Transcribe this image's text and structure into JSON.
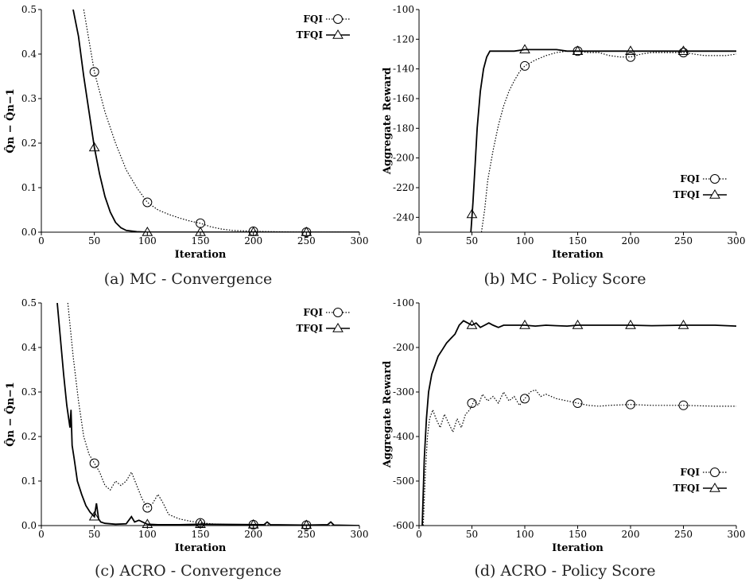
{
  "figure": {
    "panels": [
      {
        "id": "a",
        "caption": "(a) MC - Convergence"
      },
      {
        "id": "b",
        "caption": "(b) MC - Policy Score"
      },
      {
        "id": "c",
        "caption": "(c) ACRO - Convergence"
      },
      {
        "id": "d",
        "caption": "(d) ACRO - Policy Score"
      }
    ]
  },
  "chart_data": [
    {
      "type": "line",
      "xlabel": "Iteration",
      "ylabel": "Q̂n − Q̂n−1",
      "xlim": [
        0,
        300
      ],
      "ylim": [
        0,
        0.5
      ],
      "xticks": [
        0,
        50,
        100,
        150,
        200,
        250,
        300
      ],
      "yticks": [
        0.0,
        0.1,
        0.2,
        0.3,
        0.4,
        0.5
      ],
      "ytick_labels": [
        "0.0",
        "0.1",
        "0.2",
        "0.3",
        "0.4",
        "0.5"
      ],
      "legend_position": "top-right",
      "series": [
        {
          "name": "FQI",
          "style": "dotted",
          "marker": "circle",
          "x": [
            40,
            50,
            60,
            70,
            80,
            90,
            100,
            110,
            120,
            130,
            140,
            150,
            160,
            170,
            180,
            190,
            200,
            220,
            250,
            300
          ],
          "y": [
            0.5,
            0.36,
            0.27,
            0.2,
            0.14,
            0.1,
            0.067,
            0.05,
            0.04,
            0.032,
            0.025,
            0.02,
            0.012,
            0.007,
            0.004,
            0.003,
            0.002,
            0.001,
            0.0,
            0.0
          ],
          "marker_x": [
            50,
            100,
            150,
            200,
            250
          ],
          "marker_y": [
            0.36,
            0.067,
            0.02,
            0.002,
            0.0
          ]
        },
        {
          "name": "TFQI",
          "style": "solid",
          "marker": "triangle",
          "x": [
            30,
            35,
            40,
            45,
            50,
            55,
            60,
            65,
            70,
            75,
            80,
            90,
            100,
            120,
            300
          ],
          "y": [
            0.5,
            0.44,
            0.35,
            0.27,
            0.19,
            0.13,
            0.08,
            0.045,
            0.022,
            0.01,
            0.004,
            0.001,
            0.0,
            0.0,
            0.0
          ],
          "marker_x": [
            50,
            100,
            150,
            200,
            250
          ],
          "marker_y": [
            0.19,
            0.0,
            0.0,
            0.0,
            0.0
          ]
        }
      ]
    },
    {
      "type": "line",
      "xlabel": "Iteration",
      "ylabel": "Aggregate Reward",
      "xlim": [
        0,
        300
      ],
      "ylim": [
        -250,
        -100
      ],
      "xticks": [
        0,
        50,
        100,
        150,
        200,
        250,
        300
      ],
      "yticks": [
        -240,
        -220,
        -200,
        -180,
        -160,
        -140,
        -120,
        -100
      ],
      "ytick_labels": [
        "-240",
        "-220",
        "-200",
        "-180",
        "-160",
        "-140",
        "-120",
        "-100"
      ],
      "legend_position": "bottom-right",
      "series": [
        {
          "name": "FQI",
          "style": "dotted",
          "marker": "circle",
          "x": [
            59,
            62,
            65,
            70,
            75,
            80,
            85,
            90,
            95,
            100,
            110,
            120,
            130,
            140,
            150,
            160,
            170,
            180,
            190,
            200,
            210,
            220,
            230,
            240,
            250,
            260,
            270,
            280,
            290,
            300
          ],
          "y": [
            -250,
            -235,
            -215,
            -195,
            -178,
            -165,
            -155,
            -148,
            -142,
            -138,
            -134,
            -131,
            -129,
            -128,
            -128,
            -129,
            -129,
            -131,
            -132,
            -132,
            -130,
            -129,
            -129,
            -129,
            -129,
            -130,
            -131,
            -131,
            -131,
            -130
          ],
          "marker_x": [
            100,
            150,
            200,
            250
          ],
          "marker_y": [
            -138,
            -128,
            -132,
            -129
          ]
        },
        {
          "name": "TFQI",
          "style": "solid",
          "marker": "triangle",
          "x": [
            49,
            51,
            53,
            55,
            58,
            61,
            64,
            67,
            70,
            80,
            90,
            100,
            110,
            120,
            130,
            140,
            150,
            200,
            250,
            300
          ],
          "y": [
            -250,
            -230,
            -205,
            -180,
            -155,
            -140,
            -132,
            -128,
            -128,
            -128,
            -128,
            -127,
            -127,
            -127,
            -127,
            -128,
            -128,
            -128,
            -128,
            -128
          ],
          "marker_x": [
            50,
            100,
            150,
            200,
            250
          ],
          "marker_y": [
            -238,
            -127,
            -128,
            -128,
            -128
          ]
        }
      ]
    },
    {
      "type": "line",
      "xlabel": "Iteration",
      "ylabel": "Q̂n − Q̂n−1",
      "xlim": [
        0,
        300
      ],
      "ylim": [
        0,
        0.5
      ],
      "xticks": [
        0,
        50,
        100,
        150,
        200,
        250,
        300
      ],
      "yticks": [
        0.0,
        0.1,
        0.2,
        0.3,
        0.4,
        0.5
      ],
      "ytick_labels": [
        "0.0",
        "0.1",
        "0.2",
        "0.3",
        "0.4",
        "0.5"
      ],
      "legend_position": "top-right",
      "series": [
        {
          "name": "FQI",
          "style": "dotted",
          "marker": "circle",
          "x": [
            25,
            30,
            35,
            40,
            45,
            50,
            55,
            60,
            65,
            70,
            75,
            80,
            85,
            90,
            95,
            100,
            105,
            110,
            115,
            120,
            125,
            130,
            140,
            150,
            160,
            180,
            200,
            250,
            300
          ],
          "y": [
            0.5,
            0.38,
            0.28,
            0.2,
            0.16,
            0.14,
            0.12,
            0.09,
            0.08,
            0.1,
            0.09,
            0.1,
            0.12,
            0.09,
            0.06,
            0.04,
            0.05,
            0.07,
            0.05,
            0.025,
            0.02,
            0.015,
            0.01,
            0.006,
            0.004,
            0.002,
            0.002,
            0.001,
            0.0
          ],
          "marker_x": [
            50,
            100,
            150,
            200,
            250
          ],
          "marker_y": [
            0.14,
            0.04,
            0.006,
            0.002,
            0.001
          ]
        },
        {
          "name": "TFQI",
          "style": "solid",
          "marker": "triangle",
          "x": [
            15,
            18,
            21,
            24,
            27,
            28,
            29,
            31,
            34,
            38,
            42,
            46,
            50,
            52,
            54,
            56,
            60,
            70,
            80,
            85,
            88,
            92,
            100,
            110,
            130,
            150,
            210,
            213,
            216,
            250,
            270,
            273,
            276,
            300
          ],
          "y": [
            0.5,
            0.42,
            0.34,
            0.27,
            0.22,
            0.26,
            0.18,
            0.15,
            0.1,
            0.07,
            0.045,
            0.03,
            0.02,
            0.05,
            0.015,
            0.008,
            0.005,
            0.003,
            0.004,
            0.02,
            0.008,
            0.012,
            0.003,
            0.002,
            0.002,
            0.003,
            0.002,
            0.008,
            0.002,
            0.001,
            0.002,
            0.008,
            0.001,
            0.0
          ],
          "marker_x": [
            50,
            100,
            150,
            200,
            250
          ],
          "marker_y": [
            0.02,
            0.003,
            0.003,
            0.002,
            0.001
          ]
        }
      ]
    },
    {
      "type": "line",
      "xlabel": "Iteration",
      "ylabel": "Aggregate Reward",
      "xlim": [
        0,
        300
      ],
      "ylim": [
        -600,
        -100
      ],
      "xticks": [
        0,
        50,
        100,
        150,
        200,
        250,
        300
      ],
      "yticks": [
        -600,
        -500,
        -400,
        -300,
        -200,
        -100
      ],
      "ytick_labels": [
        "-600",
        "-500",
        "-400",
        "-300",
        "-200",
        "-100"
      ],
      "legend_position": "bottom-right",
      "series": [
        {
          "name": "FQI",
          "style": "dotted",
          "marker": "circle",
          "x": [
            4,
            6,
            8,
            10,
            13,
            16,
            20,
            24,
            28,
            32,
            36,
            40,
            44,
            48,
            52,
            56,
            60,
            65,
            70,
            75,
            80,
            85,
            90,
            95,
            100,
            105,
            110,
            115,
            120,
            130,
            140,
            150,
            160,
            170,
            180,
            200,
            220,
            250,
            280,
            300
          ],
          "y": [
            -600,
            -480,
            -400,
            -360,
            -340,
            -360,
            -380,
            -350,
            -370,
            -390,
            -360,
            -380,
            -350,
            -340,
            -320,
            -330,
            -305,
            -320,
            -310,
            -325,
            -300,
            -320,
            -310,
            -330,
            -315,
            -300,
            -295,
            -310,
            -305,
            -315,
            -320,
            -325,
            -330,
            -332,
            -330,
            -328,
            -330,
            -330,
            -332,
            -332
          ],
          "marker_x": [
            50,
            100,
            150,
            200,
            250
          ],
          "marker_y": [
            -325,
            -315,
            -325,
            -328,
            -330
          ]
        },
        {
          "name": "TFQI",
          "style": "solid",
          "marker": "triangle",
          "x": [
            3,
            5,
            7,
            9,
            12,
            15,
            18,
            22,
            26,
            30,
            34,
            38,
            42,
            46,
            50,
            54,
            58,
            62,
            66,
            70,
            75,
            80,
            90,
            100,
            110,
            120,
            130,
            140,
            150,
            160,
            170,
            180,
            200,
            220,
            250,
            280,
            300
          ],
          "y": [
            -600,
            -450,
            -360,
            -300,
            -260,
            -240,
            -220,
            -205,
            -190,
            -180,
            -170,
            -150,
            -140,
            -145,
            -150,
            -145,
            -155,
            -150,
            -145,
            -150,
            -155,
            -150,
            -150,
            -150,
            -152,
            -150,
            -151,
            -152,
            -150,
            -150,
            -150,
            -150,
            -150,
            -151,
            -150,
            -150,
            -152
          ],
          "marker_x": [
            50,
            100,
            150,
            200,
            250
          ],
          "marker_y": [
            -150,
            -150,
            -150,
            -150,
            -150
          ]
        }
      ]
    }
  ]
}
